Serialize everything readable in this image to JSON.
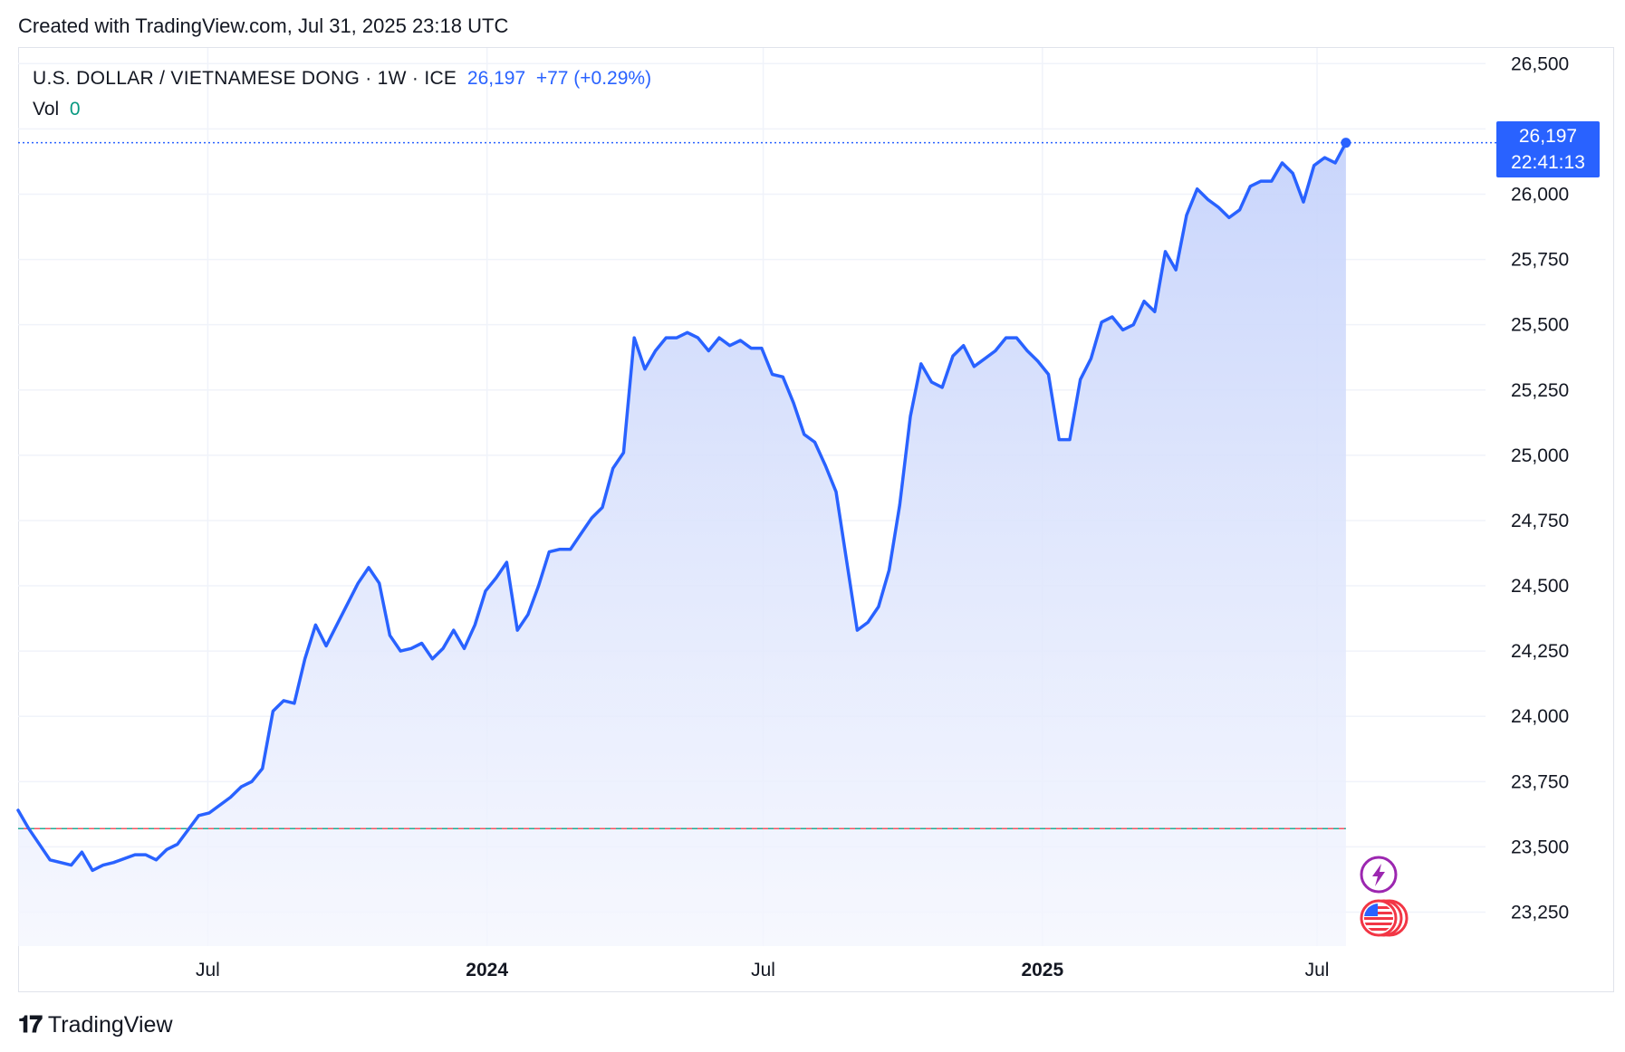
{
  "header": {
    "credit": "Created with TradingView.com, Jul 31, 2025 23:18 UTC"
  },
  "legend": {
    "symbol": "U.S. DOLLAR / VIETNAMESE DONG · 1W · ICE",
    "last": "26,197",
    "change": "+77 (+0.29%)",
    "vol_label": "Vol",
    "vol_value": "0"
  },
  "price_label": {
    "price": "26,197",
    "countdown": "22:41:13"
  },
  "footer": {
    "brand": "TradingView"
  },
  "colors": {
    "line": "#2962ff",
    "area_top": "#c6d3fb",
    "area_bottom": "#f4f6fe",
    "grid": "#f0f3fa",
    "baseline_red": "#f7525f",
    "baseline_teal": "#22ab94",
    "events_lightning": "#9c27b0",
    "events_flag": "#f23645"
  },
  "chart_data": {
    "type": "area",
    "title": "U.S. DOLLAR / VIETNAMESE DONG · 1W · ICE",
    "xlabel": "",
    "ylabel": "",
    "ylim": [
      23120,
      26560
    ],
    "y_ticks": [
      26500,
      26250,
      26000,
      25750,
      25500,
      25250,
      25000,
      24750,
      24500,
      24250,
      24000,
      23750,
      23500,
      23250
    ],
    "y_tick_labels": [
      "26,500",
      "26,250",
      "26,000",
      "25,750",
      "25,500",
      "25,250",
      "25,000",
      "24,750",
      "24,500",
      "24,250",
      "24,000",
      "23,750",
      "23,500",
      "23,250"
    ],
    "x_ticks": [
      {
        "label": "Jul",
        "date": "2023-07-01",
        "bold": false
      },
      {
        "label": "2024",
        "date": "2024-01-01",
        "bold": true
      },
      {
        "label": "Jul",
        "date": "2024-07-01",
        "bold": false
      },
      {
        "label": "2025",
        "date": "2025-01-01",
        "bold": true
      },
      {
        "label": "Jul",
        "date": "2025-07-01",
        "bold": false
      }
    ],
    "x_range": [
      "2023-02-26",
      "2025-10-20"
    ],
    "baseline_value": 23570,
    "last_value": 26197,
    "grid": true,
    "series": [
      {
        "points": [
          [
            "2023-02-26",
            23640
          ],
          [
            "2023-03-05",
            23570
          ],
          [
            "2023-03-19",
            23450
          ],
          [
            "2023-04-02",
            23430
          ],
          [
            "2023-04-09",
            23480
          ],
          [
            "2023-04-16",
            23410
          ],
          [
            "2023-04-23",
            23430
          ],
          [
            "2023-04-30",
            23440
          ],
          [
            "2023-05-14",
            23470
          ],
          [
            "2023-05-21",
            23470
          ],
          [
            "2023-05-28",
            23450
          ],
          [
            "2023-06-04",
            23490
          ],
          [
            "2023-06-11",
            23510
          ],
          [
            "2023-06-25",
            23620
          ],
          [
            "2023-07-02",
            23630
          ],
          [
            "2023-07-16",
            23690
          ],
          [
            "2023-07-23",
            23730
          ],
          [
            "2023-07-30",
            23750
          ],
          [
            "2023-08-06",
            23800
          ],
          [
            "2023-08-13",
            24020
          ],
          [
            "2023-08-20",
            24060
          ],
          [
            "2023-08-27",
            24050
          ],
          [
            "2023-09-03",
            24220
          ],
          [
            "2023-09-10",
            24350
          ],
          [
            "2023-09-17",
            24270
          ],
          [
            "2023-09-24",
            24350
          ],
          [
            "2023-10-08",
            24510
          ],
          [
            "2023-10-15",
            24570
          ],
          [
            "2023-10-22",
            24510
          ],
          [
            "2023-10-29",
            24310
          ],
          [
            "2023-11-05",
            24250
          ],
          [
            "2023-11-12",
            24260
          ],
          [
            "2023-11-19",
            24280
          ],
          [
            "2023-11-26",
            24220
          ],
          [
            "2023-12-03",
            24260
          ],
          [
            "2023-12-10",
            24330
          ],
          [
            "2023-12-17",
            24260
          ],
          [
            "2023-12-24",
            24350
          ],
          [
            "2023-12-31",
            24480
          ],
          [
            "2024-01-07",
            24530
          ],
          [
            "2024-01-14",
            24590
          ],
          [
            "2024-01-21",
            24330
          ],
          [
            "2024-01-28",
            24390
          ],
          [
            "2024-02-04",
            24500
          ],
          [
            "2024-02-11",
            24630
          ],
          [
            "2024-02-18",
            24640
          ],
          [
            "2024-02-25",
            24640
          ],
          [
            "2024-03-03",
            24700
          ],
          [
            "2024-03-10",
            24760
          ],
          [
            "2024-03-17",
            24800
          ],
          [
            "2024-03-24",
            24950
          ],
          [
            "2024-03-31",
            25010
          ],
          [
            "2024-04-07",
            25450
          ],
          [
            "2024-04-14",
            25330
          ],
          [
            "2024-04-21",
            25400
          ],
          [
            "2024-04-28",
            25450
          ],
          [
            "2024-05-05",
            25450
          ],
          [
            "2024-05-12",
            25470
          ],
          [
            "2024-05-19",
            25450
          ],
          [
            "2024-05-26",
            25400
          ],
          [
            "2024-06-02",
            25450
          ],
          [
            "2024-06-09",
            25420
          ],
          [
            "2024-06-16",
            25440
          ],
          [
            "2024-06-23",
            25410
          ],
          [
            "2024-06-30",
            25410
          ],
          [
            "2024-07-07",
            25310
          ],
          [
            "2024-07-14",
            25300
          ],
          [
            "2024-07-21",
            25200
          ],
          [
            "2024-07-28",
            25080
          ],
          [
            "2024-08-04",
            25050
          ],
          [
            "2024-08-11",
            24960
          ],
          [
            "2024-08-18",
            24860
          ],
          [
            "2024-09-01",
            24330
          ],
          [
            "2024-09-08",
            24360
          ],
          [
            "2024-09-15",
            24420
          ],
          [
            "2024-09-22",
            24560
          ],
          [
            "2024-09-29",
            24810
          ],
          [
            "2024-10-06",
            25150
          ],
          [
            "2024-10-13",
            25350
          ],
          [
            "2024-10-20",
            25280
          ],
          [
            "2024-10-27",
            25260
          ],
          [
            "2024-11-03",
            25380
          ],
          [
            "2024-11-10",
            25420
          ],
          [
            "2024-11-17",
            25340
          ],
          [
            "2024-11-24",
            25370
          ],
          [
            "2024-12-01",
            25400
          ],
          [
            "2024-12-08",
            25450
          ],
          [
            "2024-12-15",
            25450
          ],
          [
            "2024-12-22",
            25400
          ],
          [
            "2024-12-29",
            25360
          ],
          [
            "2025-01-05",
            25310
          ],
          [
            "2025-01-12",
            25060
          ],
          [
            "2025-01-19",
            25060
          ],
          [
            "2025-01-26",
            25290
          ],
          [
            "2025-02-02",
            25370
          ],
          [
            "2025-02-09",
            25510
          ],
          [
            "2025-02-16",
            25530
          ],
          [
            "2025-02-23",
            25480
          ],
          [
            "2025-03-02",
            25500
          ],
          [
            "2025-03-09",
            25590
          ],
          [
            "2025-03-16",
            25550
          ],
          [
            "2025-03-23",
            25780
          ],
          [
            "2025-03-30",
            25710
          ],
          [
            "2025-04-06",
            25920
          ],
          [
            "2025-04-13",
            26020
          ],
          [
            "2025-04-20",
            25980
          ],
          [
            "2025-04-27",
            25950
          ],
          [
            "2025-05-04",
            25910
          ],
          [
            "2025-05-11",
            25940
          ],
          [
            "2025-05-18",
            26030
          ],
          [
            "2025-05-25",
            26050
          ],
          [
            "2025-06-01",
            26050
          ],
          [
            "2025-06-08",
            26120
          ],
          [
            "2025-06-15",
            26080
          ],
          [
            "2025-06-22",
            25970
          ],
          [
            "2025-06-29",
            26110
          ],
          [
            "2025-07-06",
            26140
          ],
          [
            "2025-07-13",
            26120
          ],
          [
            "2025-07-20",
            26197
          ]
        ]
      }
    ]
  }
}
